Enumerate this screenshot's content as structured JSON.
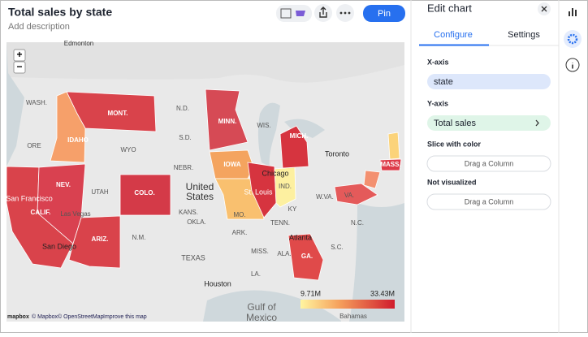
{
  "header": {
    "title": "Total sales by state",
    "description": "Add description",
    "pin": "Pin"
  },
  "map": {
    "zoom": [
      "+",
      "−"
    ],
    "labels": [
      "Edmonton",
      "WASH.",
      "MONT.",
      "N.D.",
      "MINN.",
      "ORE",
      "IDAHO",
      "WYO",
      "S.D.",
      "WIS.",
      "MICH.",
      "Toronto",
      "NEV.",
      "NEBR.",
      "IOWA",
      "Chicago",
      "United",
      "States",
      "UTAH",
      "COLO.",
      "IND.",
      "San Francisco",
      "CALIF.",
      "KANS.",
      "St. Louis",
      "MO.",
      "KY",
      "W.VA.",
      "VA.",
      "MASS.",
      "Las Vegas",
      "OKLA.",
      "ARK.",
      "TENN.",
      "N.C.",
      "Atlanta",
      "GA.",
      "ARIZ.",
      "N.M.",
      "San Diego",
      "MISS.",
      "ALA.",
      "S.C.",
      "TEXAS",
      "LA.",
      "Houston",
      "Gulf of",
      "Mexico",
      "Bahamas"
    ],
    "legend": {
      "min": "9.71M",
      "max": "33.43M"
    },
    "attribution": [
      "mapbox",
      "© Mapbox",
      "© OpenStreetMap",
      "Improve this map"
    ]
  },
  "panel": {
    "title": "Edit chart",
    "tabs": [
      "Configure",
      "Settings"
    ],
    "sections": [
      {
        "label": "X-axis",
        "item": "state"
      },
      {
        "label": "Y-axis",
        "item": "Total sales"
      },
      {
        "label": "Slice with color",
        "item": "Drag a Column"
      },
      {
        "label": "Not visualized",
        "item": "Drag a Column"
      }
    ]
  }
}
